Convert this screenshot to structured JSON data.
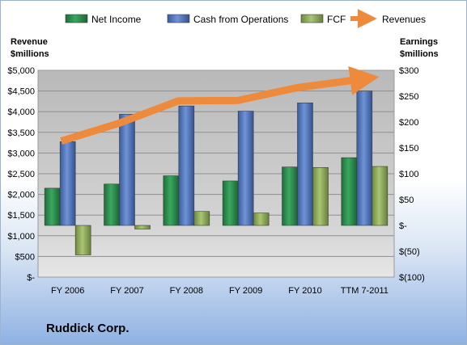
{
  "company": "Ruddick Corp.",
  "chart_data": {
    "type": "bar",
    "categories": [
      "FY 2006",
      "FY 2007",
      "FY 2008",
      "FY 2009",
      "FY 2010",
      "TTM 7-2011"
    ],
    "left_axis": {
      "label_line1": "Revenue",
      "label_line2": "$millions",
      "ylim": [
        0,
        5000
      ],
      "ticks": [
        0,
        500,
        1000,
        1500,
        2000,
        2500,
        3000,
        3500,
        4000,
        4500,
        5000
      ],
      "tick_labels": [
        "$-",
        "$500",
        "$1,000",
        "$1,500",
        "$2,000",
        "$2,500",
        "$3,000",
        "$3,500",
        "$4,000",
        "$4,500",
        "$5,000"
      ]
    },
    "right_axis": {
      "label_line1": "Earnings",
      "label_line2": "$millions",
      "ylim": [
        -100,
        300
      ],
      "ticks": [
        -100,
        -50,
        0,
        50,
        100,
        150,
        200,
        250,
        300
      ],
      "tick_labels": [
        "$(100)",
        "$(50)",
        "$-",
        "$50",
        "$100",
        "$150",
        "$200",
        "$250",
        "$300"
      ]
    },
    "series": [
      {
        "name": "Net Income",
        "axis": "right",
        "type": "bar",
        "color": "#2f8f4e",
        "values": [
          72,
          80,
          96,
          86,
          113,
          131
        ]
      },
      {
        "name": "Cash from Operations",
        "axis": "right",
        "type": "bar",
        "color": "#4f74b8",
        "values": [
          162,
          215,
          231,
          221,
          237,
          260
        ]
      },
      {
        "name": "FCF",
        "axis": "right",
        "type": "bar",
        "color": "#8fac58",
        "values": [
          -57,
          -7,
          27,
          24,
          112,
          114
        ]
      },
      {
        "name": "Revenues",
        "axis": "left",
        "type": "line",
        "color": "#ee8a3c",
        "values": [
          3290,
          3720,
          4260,
          4270,
          4580,
          4800
        ]
      }
    ],
    "legend_position": "top",
    "plot_background": "#c4c4c4",
    "grid": true
  }
}
